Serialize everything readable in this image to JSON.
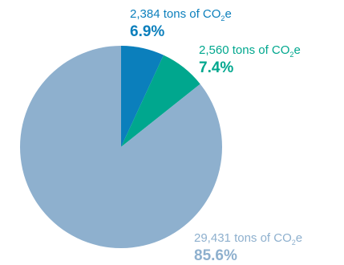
{
  "chart_data": {
    "type": "pie",
    "slices": [
      {
        "tons": "2,384",
        "unit_pre": "tons of CO",
        "unit_sub": "2",
        "unit_post": "e",
        "percent_label": "6.9%",
        "value": 6.9,
        "color": "#0b7fbc"
      },
      {
        "tons": "2,560",
        "unit_pre": "tons of CO",
        "unit_sub": "2",
        "unit_post": "e",
        "percent_label": "7.4%",
        "value": 7.4,
        "color": "#00a78e"
      },
      {
        "tons": "29,431",
        "unit_pre": "tons of CO",
        "unit_sub": "2",
        "unit_post": "e",
        "percent_label": "85.6%",
        "value": 85.6,
        "color": "#8eb0ce"
      }
    ],
    "start_angle_deg": 0,
    "direction": "clockwise",
    "legend": "none"
  }
}
